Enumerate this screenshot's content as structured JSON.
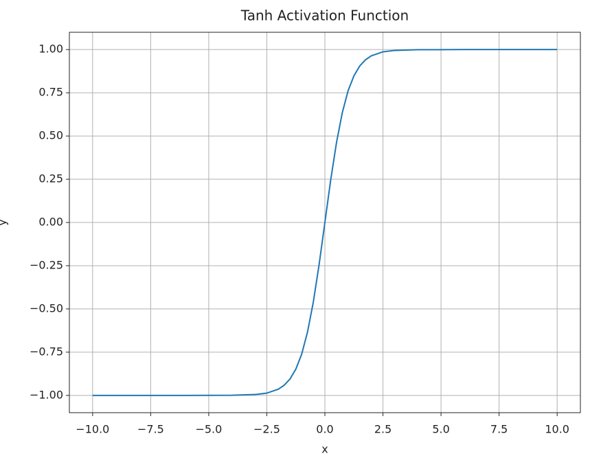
{
  "chart_data": {
    "type": "line",
    "title": "Tanh Activation Function",
    "xlabel": "x",
    "ylabel": "y",
    "x": [
      -10,
      -8,
      -6,
      -4,
      -3,
      -2.5,
      -2,
      -1.75,
      -1.5,
      -1.25,
      -1,
      -0.75,
      -0.5,
      -0.25,
      0,
      0.25,
      0.5,
      0.75,
      1,
      1.25,
      1.5,
      1.75,
      2,
      2.5,
      3,
      4,
      6,
      8,
      10
    ],
    "series": [
      {
        "name": "tanh",
        "color": "#1f77b4",
        "values": [
          -1.0,
          -1.0,
          -1.0,
          -0.999,
          -0.995,
          -0.987,
          -0.964,
          -0.941,
          -0.905,
          -0.848,
          -0.762,
          -0.635,
          -0.462,
          -0.245,
          0,
          0.245,
          0.462,
          0.635,
          0.762,
          0.848,
          0.905,
          0.941,
          0.964,
          0.987,
          0.995,
          0.999,
          1.0,
          1.0,
          1.0
        ]
      }
    ],
    "xlim": [
      -11,
      11
    ],
    "ylim": [
      -1.1,
      1.1
    ],
    "xticks": [
      {
        "value": -10,
        "label": "−10.0"
      },
      {
        "value": -7.5,
        "label": "−7.5"
      },
      {
        "value": -5,
        "label": "−5.0"
      },
      {
        "value": -2.5,
        "label": "−2.5"
      },
      {
        "value": 0,
        "label": "0.0"
      },
      {
        "value": 2.5,
        "label": "2.5"
      },
      {
        "value": 5,
        "label": "5.0"
      },
      {
        "value": 7.5,
        "label": "7.5"
      },
      {
        "value": 10,
        "label": "10.0"
      }
    ],
    "yticks": [
      {
        "value": -1,
        "label": "−1.00"
      },
      {
        "value": -0.75,
        "label": "−0.75"
      },
      {
        "value": -0.5,
        "label": "−0.50"
      },
      {
        "value": -0.25,
        "label": "−0.25"
      },
      {
        "value": 0,
        "label": "0.00"
      },
      {
        "value": 0.25,
        "label": "0.25"
      },
      {
        "value": 0.5,
        "label": "0.50"
      },
      {
        "value": 0.75,
        "label": "0.75"
      },
      {
        "value": 1,
        "label": "1.00"
      }
    ],
    "grid": true
  }
}
